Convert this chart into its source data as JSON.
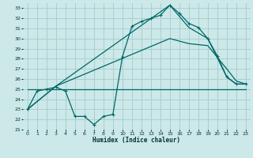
{
  "xlabel": "Humidex (Indice chaleur)",
  "xlim": [
    -0.5,
    23.5
  ],
  "ylim": [
    21,
    33.5
  ],
  "yticks": [
    21,
    22,
    23,
    24,
    25,
    26,
    27,
    28,
    29,
    30,
    31,
    32,
    33
  ],
  "xticks": [
    0,
    1,
    2,
    3,
    4,
    5,
    6,
    7,
    8,
    9,
    10,
    11,
    12,
    13,
    14,
    15,
    16,
    17,
    18,
    19,
    20,
    21,
    22,
    23
  ],
  "bg_color": "#cce8e8",
  "grid_color": "#aacfcf",
  "line_color": "#006868",
  "line1": {
    "x": [
      0,
      1,
      2,
      3,
      4,
      5,
      6,
      7,
      8,
      9,
      10,
      11,
      12,
      13,
      14,
      15,
      16,
      17,
      18,
      19,
      20,
      21,
      22,
      23
    ],
    "y": [
      23.0,
      24.8,
      25.0,
      25.2,
      24.8,
      22.3,
      22.3,
      21.5,
      22.3,
      22.5,
      28.2,
      31.2,
      31.7,
      32.0,
      32.3,
      33.3,
      32.5,
      31.5,
      31.1,
      30.0,
      28.3,
      26.2,
      25.5,
      25.5
    ]
  },
  "line2": {
    "x": [
      0,
      3,
      15,
      17,
      19,
      21,
      22,
      23
    ],
    "y": [
      23.0,
      25.3,
      33.3,
      31.1,
      30.0,
      26.2,
      25.5,
      25.5
    ]
  },
  "line3": {
    "x": [
      0,
      3,
      15,
      17,
      19,
      21,
      22,
      23
    ],
    "y": [
      23.0,
      25.3,
      30.0,
      29.5,
      29.3,
      27.0,
      25.8,
      25.5
    ]
  },
  "line4": {
    "x": [
      0,
      23
    ],
    "y": [
      25.0,
      25.0
    ]
  }
}
